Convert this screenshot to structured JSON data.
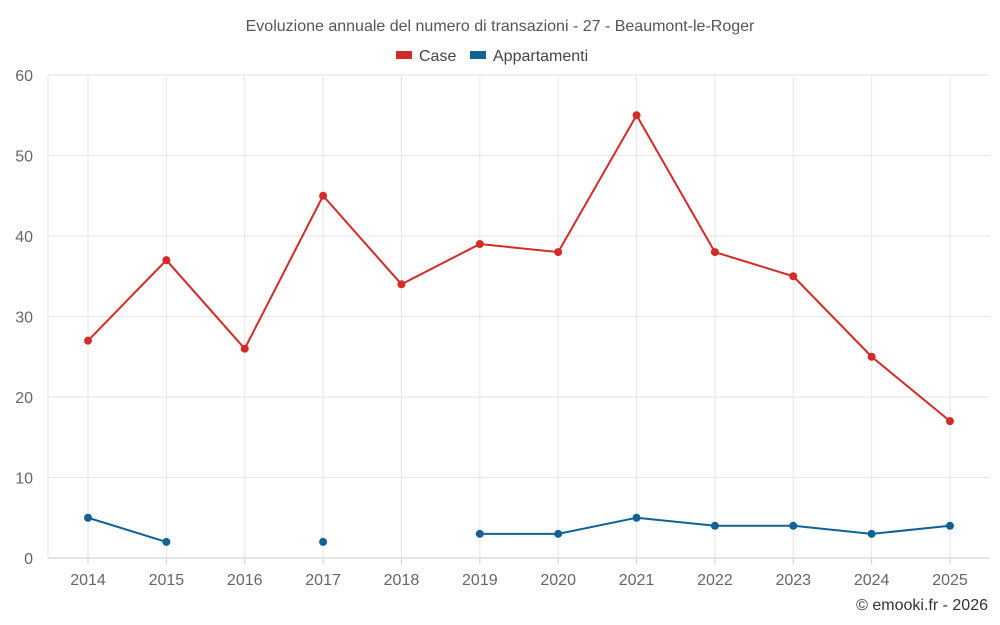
{
  "chart_data": {
    "type": "line",
    "title": "Evoluzione annuale del numero di transazioni - 27 - Beaumont-le-Roger",
    "categories": [
      "2014",
      "2015",
      "2016",
      "2017",
      "2018",
      "2019",
      "2020",
      "2021",
      "2022",
      "2023",
      "2024",
      "2025"
    ],
    "series": [
      {
        "name": "Case",
        "color": "#d42a2a",
        "values": [
          27,
          37,
          26,
          45,
          34,
          39,
          38,
          55,
          38,
          35,
          25,
          17
        ]
      },
      {
        "name": "Appartamenti",
        "color": "#0f6396",
        "values": [
          5,
          2,
          null,
          2,
          null,
          3,
          3,
          5,
          4,
          4,
          3,
          4
        ]
      }
    ],
    "ylim": [
      0,
      60
    ],
    "yticks": [
      0,
      10,
      20,
      30,
      40,
      50,
      60
    ],
    "grid": true,
    "legend_position": "top-center"
  },
  "credit": "© emooki.fr - 2026"
}
